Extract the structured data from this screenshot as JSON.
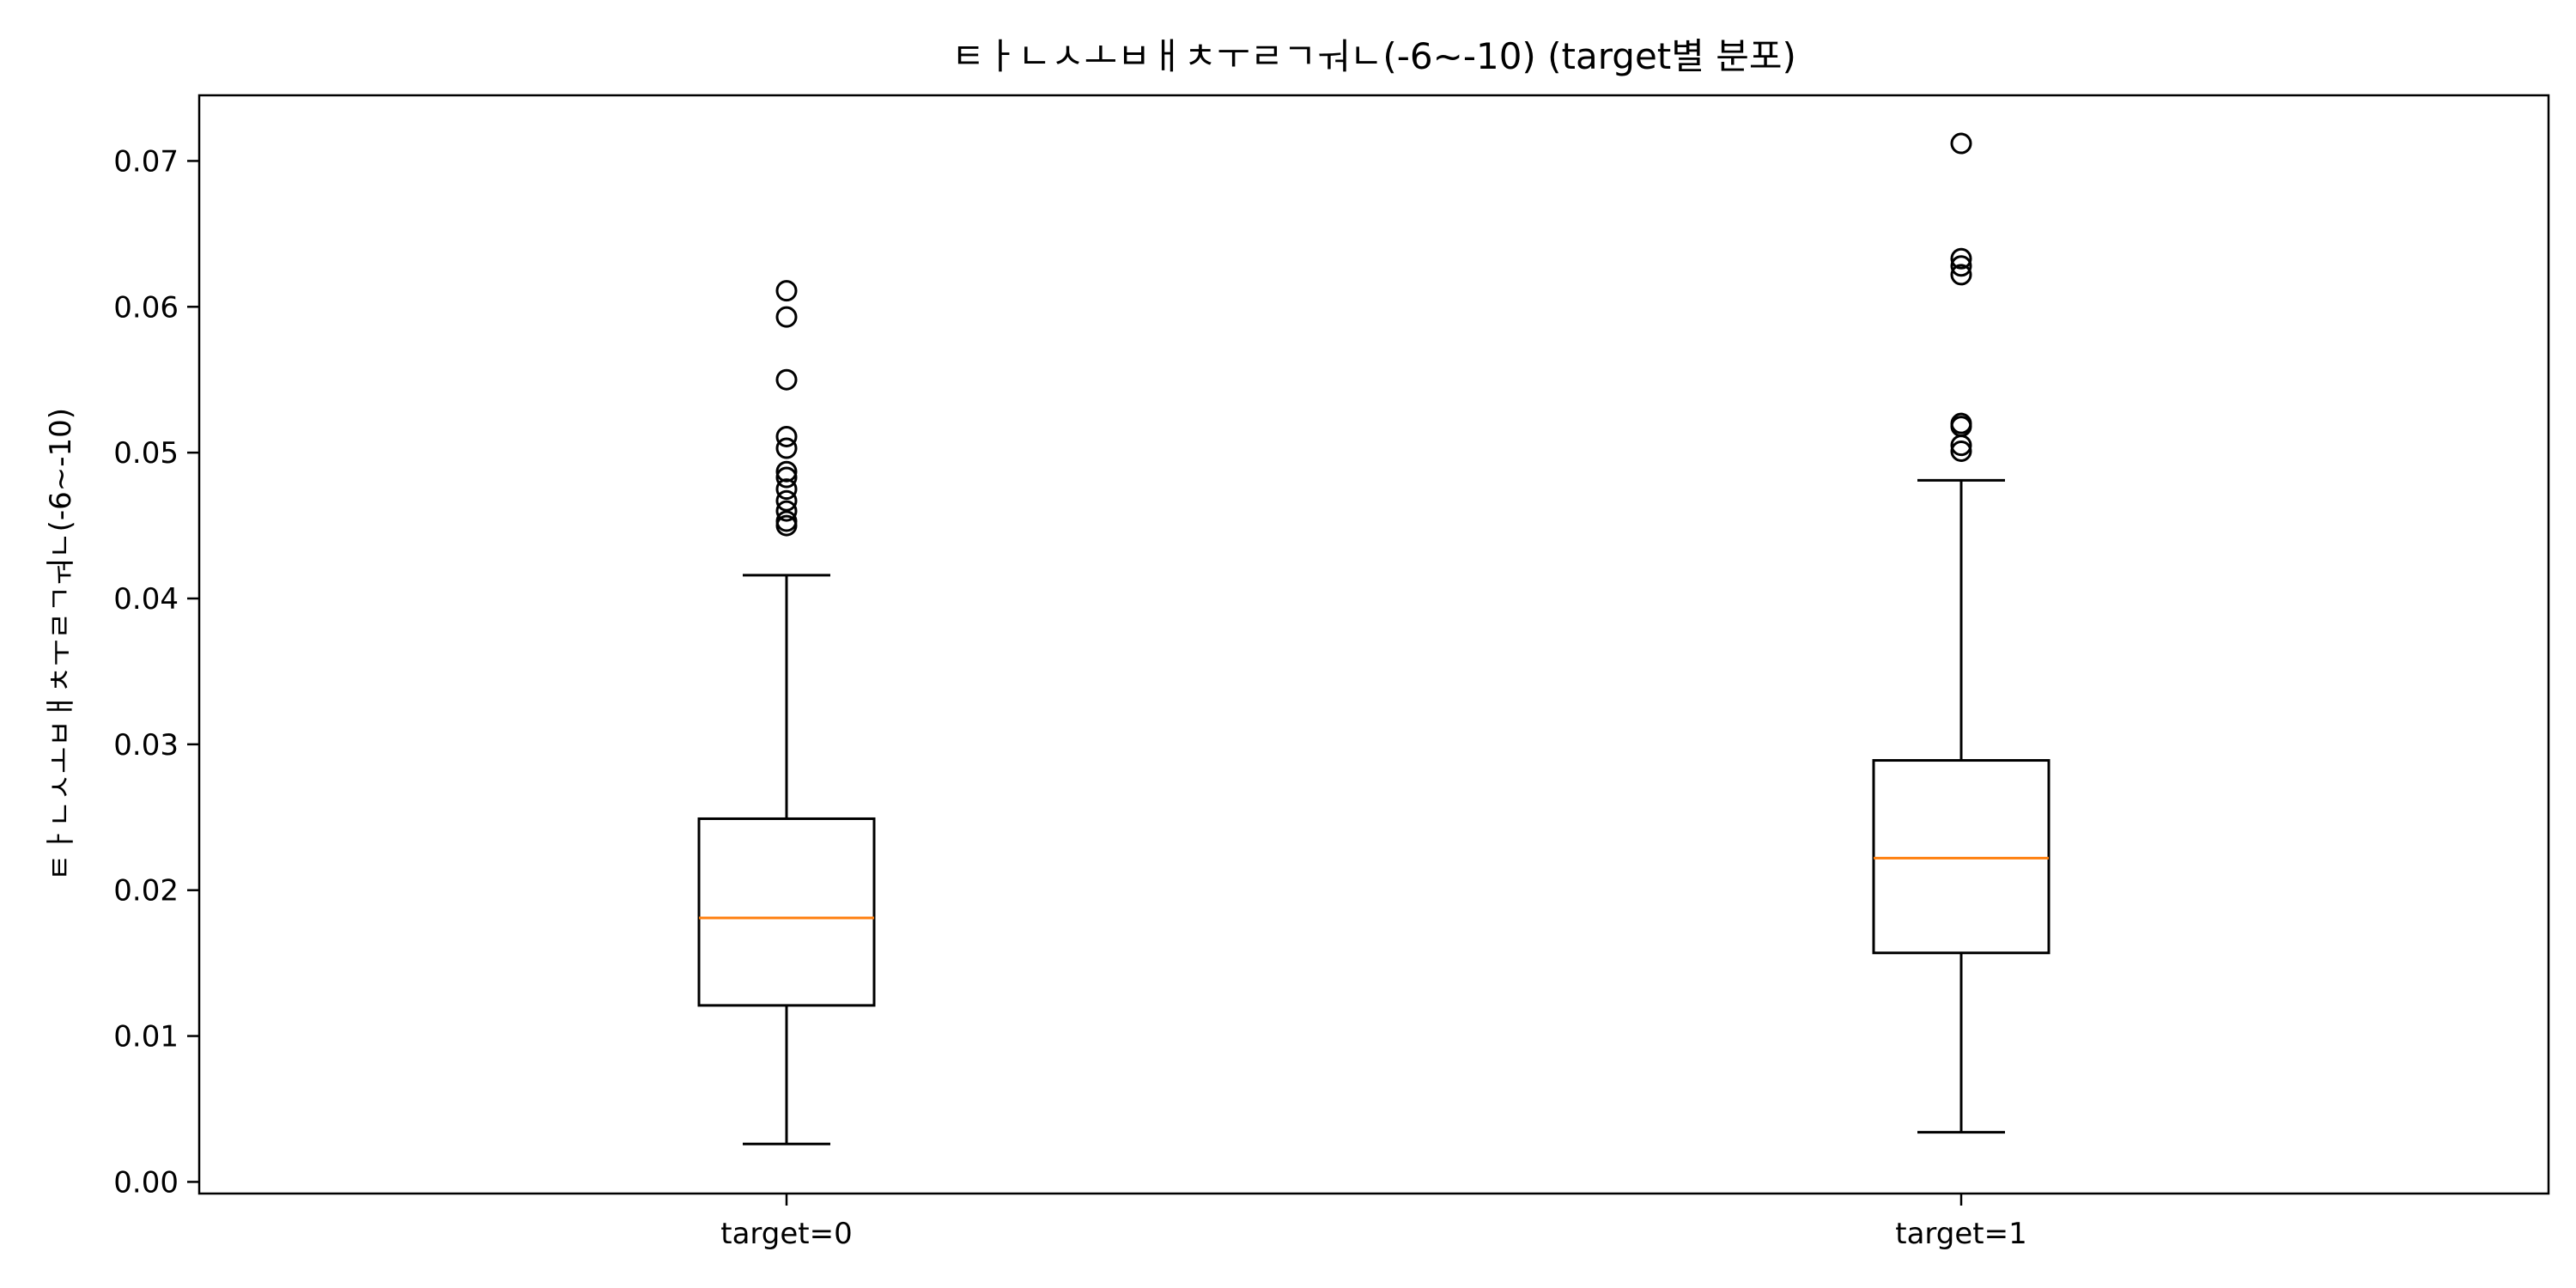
{
  "chart_data": {
    "type": "box",
    "title": "ㅌㅏㄴㅅㅗㅂㅐㅊㅜㄹㄱㅝㄴ(-6~-10) (target별 분포)",
    "xlabel": "",
    "ylabel": "ㅌㅏㄴㅅㅗㅂㅐㅊㅜㄹㄱㅝㄴ(-6~-10)",
    "ylim": [
      -0.0008,
      0.0745
    ],
    "yticks": [
      0.0,
      0.01,
      0.02,
      0.03,
      0.04,
      0.05,
      0.06,
      0.07
    ],
    "ytick_labels": [
      "0.00",
      "0.01",
      "0.02",
      "0.03",
      "0.04",
      "0.05",
      "0.06",
      "0.07"
    ],
    "grid": false,
    "categories": [
      "target=0",
      "target=1"
    ],
    "boxes": [
      {
        "category": "target=0",
        "whisker_low": 0.0026,
        "q1": 0.0121,
        "median": 0.0181,
        "q3": 0.0249,
        "whisker_high": 0.0416,
        "outliers": [
          0.045,
          0.0453,
          0.046,
          0.0467,
          0.0475,
          0.0483,
          0.0487,
          0.0503,
          0.0511,
          0.055,
          0.0593,
          0.0611
        ]
      },
      {
        "category": "target=1",
        "whisker_low": 0.0034,
        "q1": 0.0157,
        "median": 0.0222,
        "q3": 0.0289,
        "whisker_high": 0.0481,
        "outliers": [
          0.0501,
          0.0505,
          0.0518,
          0.052,
          0.0622,
          0.0628,
          0.0633,
          0.0712
        ]
      }
    ],
    "colors": {
      "box": "#000000",
      "median": "#ff7f0e",
      "outlier": "#000000"
    }
  }
}
